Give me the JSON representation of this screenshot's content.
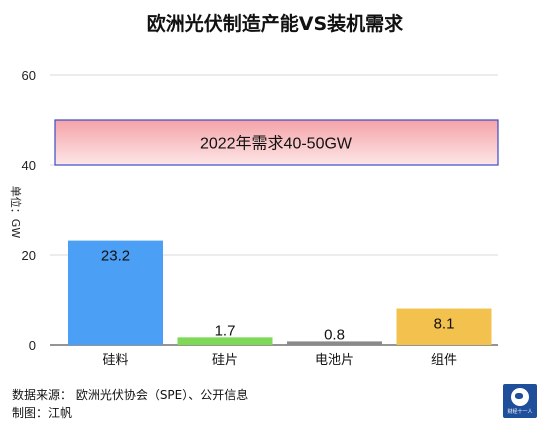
{
  "chart_data": {
    "type": "bar",
    "title": "欧洲光伏制造产能VS装机需求",
    "ylabel": "单位：GW",
    "categories": [
      "硅料",
      "硅片",
      "电池片",
      "组件"
    ],
    "values": [
      23.2,
      1.7,
      0.8,
      8.1
    ],
    "value_labels": [
      "23.2",
      "1.7",
      "0.8",
      "8.1"
    ],
    "bar_colors": [
      "#4b9ff5",
      "#7ed957",
      "#8a8a8a",
      "#f2c14e"
    ],
    "ylim": [
      0,
      60
    ],
    "yticks": [
      0,
      20,
      40,
      60
    ],
    "ytick_labels": [
      "0",
      "20",
      "40",
      "60"
    ],
    "grid": true,
    "legend": "none",
    "annotation": {
      "text": "2022年需求40-50GW",
      "y_from": 40,
      "y_to": 50,
      "color_top": "#f4a3a8",
      "color_bottom": "#fde6e7",
      "border_color": "#3b4bc8"
    }
  },
  "footer": {
    "source": "数据来源： 欧洲光伏协会（SPE）、公开信息",
    "author": "制图：江帆"
  },
  "logo": {
    "icon": "globe-icon",
    "text": "财经十一人",
    "color": "#1f4f9a"
  }
}
